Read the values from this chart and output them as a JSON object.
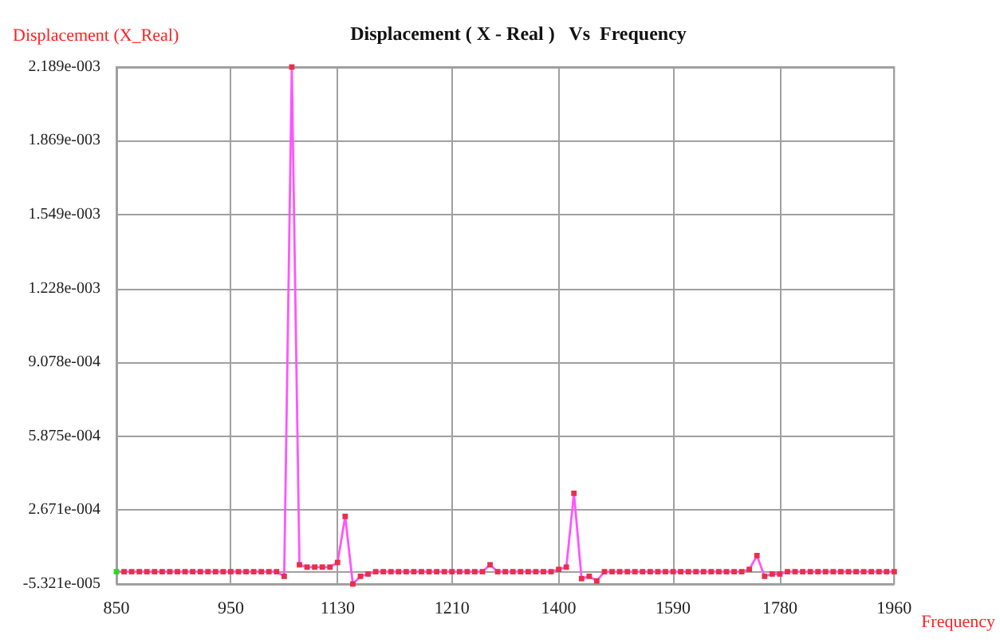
{
  "chart_data": {
    "type": "line",
    "title": "Displacement ( X - Real )   Vs  Frequency",
    "xlabel": "Frequency",
    "ylabel": "Displacement (X_Real)",
    "categories": [
      "850",
      null,
      null,
      null,
      null,
      null,
      null,
      null,
      null,
      null,
      null,
      null,
      null,
      null,
      null,
      "950",
      null,
      null,
      null,
      null,
      null,
      null,
      null,
      null,
      null,
      null,
      null,
      null,
      null,
      "1130",
      null,
      null,
      null,
      null,
      null,
      null,
      null,
      null,
      null,
      null,
      null,
      null,
      null,
      null,
      "1210",
      null,
      null,
      null,
      null,
      null,
      null,
      null,
      null,
      null,
      null,
      null,
      null,
      null,
      "1400",
      null,
      null,
      null,
      null,
      null,
      null,
      null,
      null,
      null,
      null,
      null,
      null,
      null,
      null,
      "1590",
      null,
      null,
      null,
      null,
      null,
      null,
      null,
      null,
      null,
      null,
      null,
      null,
      null,
      "1780",
      null,
      null,
      null,
      null,
      null,
      null,
      null,
      null,
      null,
      null,
      null,
      null,
      null,
      null,
      "1960"
    ],
    "series": [
      {
        "color": "#ff55ff",
        "colors": [
          "#22dd22",
          "#e8304a",
          "#e8304a",
          "#e8304a",
          "#e8304a",
          "#e8304a",
          "#e8304a",
          "#e8304a",
          "#e8304a",
          "#e8304a",
          "#e8304a",
          "#e8304a",
          "#e8304a",
          "#e8304a",
          "#e8304a",
          "#e8304a",
          "#e8304a",
          "#e8304a",
          "#e8304a",
          "#e8304a",
          "#e8304a",
          "#e8304a",
          "#e8304a",
          "#e8304a",
          "#e8304a",
          "#e8304a",
          "#e8304a",
          "#e8304a",
          "#e8304a",
          "#e8304a",
          "#e8304a",
          "#e8304a",
          "#e8304a",
          "#e8304a",
          "#e8304a",
          "#e8304a",
          "#e8304a",
          "#e8304a",
          "#e8304a",
          "#e8304a",
          "#e8304a",
          "#e8304a",
          "#e8304a",
          "#e8304a",
          "#e8304a",
          "#e8304a",
          "#e8304a",
          "#e8304a",
          "#e8304a",
          "#e8304a",
          "#e8304a",
          "#e8304a",
          "#e8304a",
          "#e8304a",
          "#e8304a",
          "#e8304a",
          "#e8304a",
          "#e8304a",
          "#e8304a",
          "#e8304a",
          "#e8304a",
          "#e8304a",
          "#e8304a",
          "#e8304a",
          "#e8304a",
          "#e8304a",
          "#e8304a",
          "#e8304a",
          "#e8304a",
          "#e8304a",
          "#e8304a",
          "#e8304a",
          "#e8304a",
          "#e8304a",
          "#e8304a",
          "#e8304a",
          "#e8304a",
          "#e8304a",
          "#e8304a",
          "#e8304a",
          "#e8304a",
          "#e8304a",
          "#e8304a",
          "#e8304a",
          "#e8304a",
          "#e8304a",
          "#e8304a",
          "#e8304a",
          "#e8304a",
          "#e8304a",
          "#e8304a",
          "#e8304a",
          "#e8304a",
          "#e8304a",
          "#e8304a",
          "#e8304a",
          "#e8304a",
          "#e8304a",
          "#e8304a",
          "#e8304a",
          "#e8304a",
          "#e8304a",
          "#e8304a"
        ],
        "values": [
          0,
          0,
          0,
          0,
          0,
          0,
          0,
          0,
          0,
          0,
          0,
          0,
          0,
          0,
          0,
          0,
          0,
          0,
          0,
          0,
          0,
          0,
          -2e-05,
          0.002189,
          3e-05,
          2e-05,
          2e-05,
          2e-05,
          2e-05,
          4e-05,
          0.00024,
          -5.321e-05,
          -2e-05,
          -1e-05,
          0,
          0,
          0,
          0,
          0,
          0,
          0,
          0,
          0,
          0,
          0,
          0,
          0,
          0,
          0,
          3e-05,
          0,
          0,
          0,
          0,
          0,
          0,
          0,
          0,
          1e-05,
          2e-05,
          0.00034,
          -3e-05,
          -2e-05,
          -4e-05,
          0,
          0,
          0,
          0,
          0,
          0,
          0,
          0,
          0,
          0,
          0,
          0,
          0,
          0,
          0,
          0,
          0,
          0,
          0,
          1e-05,
          7e-05,
          -2e-05,
          -1e-05,
          -1e-05,
          0,
          0,
          0,
          0,
          0,
          0,
          0,
          0,
          0,
          0,
          0,
          0,
          0,
          0,
          0
        ]
      }
    ],
    "ylim": [
      -5.321e-05,
      0.002189
    ],
    "yticks": [
      {
        "value": -5.321e-05,
        "label": "-5.321e-005"
      },
      {
        "value": 0.0002671,
        "label": "2.671e-004"
      },
      {
        "value": 0.0005875,
        "label": "5.875e-004"
      },
      {
        "value": 0.0009078,
        "label": "9.078e-004"
      },
      {
        "value": 0.001228,
        "label": "1.228e-003"
      },
      {
        "value": 0.001549,
        "label": "1.549e-003"
      },
      {
        "value": 0.001869,
        "label": "1.869e-003"
      },
      {
        "value": 0.002189,
        "label": "2.189e-003"
      }
    ],
    "grid": true,
    "marker": "square",
    "line_style": "solid"
  }
}
